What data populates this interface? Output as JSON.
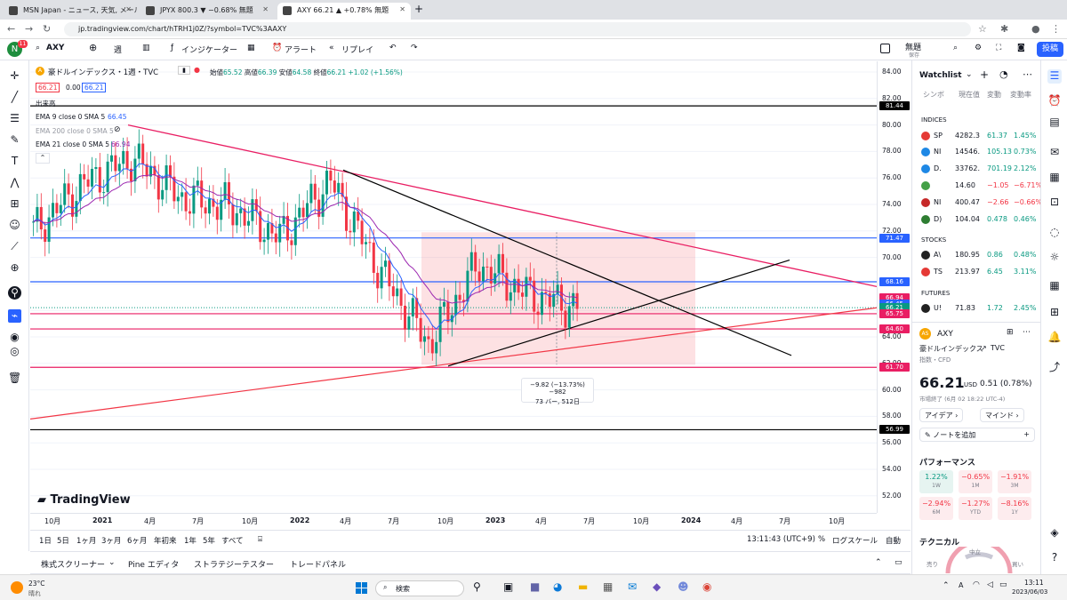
{
  "tabs": [
    {
      "label": "MSN Japan - ニュース, 天気, メール",
      "active": false
    },
    {
      "label": "JPYX 800.3 ▼ −0.68% 無題",
      "active": false
    },
    {
      "label": "AXY 66.21 ▲ +0.78% 無題",
      "active": true
    }
  ],
  "url": "jp.tradingview.com/chart/hTRH1j0Z/?symbol=TVC%3AAXY",
  "toolbar": {
    "avatar": "N",
    "badge": "11",
    "symbol": "AXY",
    "interval": "週",
    "indicators": "インジケーター",
    "alert": "アラート",
    "replay": "リプレイ",
    "layout_name": "無題",
    "layout_sub": "保存",
    "publish": "投稿"
  },
  "legend": {
    "title": "豪ドルインデックス・1週・TVC",
    "ohlc_o_label": "始値",
    "ohlc_o": "65.52",
    "ohlc_h_label": "高値",
    "ohlc_h": "66.39",
    "ohlc_l_label": "安値",
    "ohlc_l": "64.58",
    "ohlc_c_label": "終値",
    "ohlc_c": "66.21",
    "change": "+1.02 (+1.56%)",
    "box1": "66.21",
    "box2": "0.00",
    "box3": "66.21",
    "volume_label": "出来高",
    "ema9": "EMA 9 close 0 SMA 5",
    "ema9_val": "66.45",
    "ema200": "EMA 200 close 0 SMA 5",
    "ema21": "EMA 21 close 0 SMA 5",
    "ema21_val": "66.94"
  },
  "measure": {
    "line1": "−9.82 (−13.73%) −982",
    "line2": "73 バー, 512日"
  },
  "watermark": "TradingView",
  "price_labels": [
    "84.00",
    "82.00",
    "80.00",
    "78.00",
    "76.00",
    "74.00",
    "72.00",
    "70.00",
    "68.00",
    "66.00",
    "64.00",
    "62.00",
    "60.00",
    "58.00",
    "56.00",
    "54.00",
    "52.00"
  ],
  "price_boxes": [
    {
      "v": "81.44",
      "c": "#000000"
    },
    {
      "v": "71.47",
      "c": "#2962ff"
    },
    {
      "v": "68.16",
      "c": "#2962ff"
    },
    {
      "v": "66.94",
      "c": "#e91e63"
    },
    {
      "v": "66.45",
      "c": "#2962ff"
    },
    {
      "v": "66.21",
      "c": "#089981"
    },
    {
      "v": "65.75",
      "c": "#e91e63"
    },
    {
      "v": "64.60",
      "c": "#e91e63"
    },
    {
      "v": "61.70",
      "c": "#e91e63"
    },
    {
      "v": "56.99",
      "c": "#000000"
    }
  ],
  "time_labels": [
    "10月",
    "2021",
    "4月",
    "7月",
    "10月",
    "2022",
    "4月",
    "7月",
    "10月",
    "2023",
    "4月",
    "7月",
    "10月",
    "2024",
    "4月",
    "7月",
    "10月"
  ],
  "ranges": [
    "1日",
    "5日",
    "1ヶ月",
    "3ヶ月",
    "6ヶ月",
    "年初来",
    "1年",
    "5年",
    "すべて"
  ],
  "clock": "13:11:43 (UTC+9)",
  "pct": "%",
  "log": "ログスケール",
  "auto": "自動",
  "bottom_tabs": [
    "株式スクリーナー",
    "Pine エディタ",
    "ストラテジーテスター",
    "トレードパネル"
  ],
  "watchlist": {
    "title": "Watchlist",
    "cols": [
      "シンボ",
      "現在值",
      "変動",
      "変動率"
    ],
    "sections": {
      "indices": "INDICES",
      "stocks": "STOCKS",
      "futures": "FUTURES"
    },
    "rows": [
      {
        "sym": "SP",
        "price": "4282.3",
        "chg": "61.37",
        "pct": "1.45%",
        "color": "#e53935",
        "up": true
      },
      {
        "sym": "NI",
        "price": "14546.",
        "chg": "105.13",
        "pct": "0.73%",
        "color": "#1e88e5",
        "up": true
      },
      {
        "sym": "D.",
        "price": "33762.",
        "chg": "701.19",
        "pct": "2.12%",
        "color": "#1e88e5",
        "up": true
      },
      {
        "sym": "",
        "price": "14.60",
        "chg": "−1.05",
        "pct": "−6.71%",
        "color": "#43a047",
        "up": false
      },
      {
        "sym": "NI",
        "price": "400.47",
        "chg": "−2.66",
        "pct": "−0.66%",
        "color": "#c62828",
        "up": false
      },
      {
        "sym": "D)",
        "price": "104.04",
        "chg": "0.478",
        "pct": "0.46%",
        "color": "#2e7d32",
        "up": true
      },
      {
        "sym": "A\\",
        "price": "180.95",
        "chg": "0.86",
        "pct": "0.48%",
        "color": "#212121",
        "up": true
      },
      {
        "sym": "TS",
        "price": "213.97",
        "chg": "6.45",
        "pct": "3.11%",
        "color": "#e53935",
        "up": true
      },
      {
        "sym": "U!",
        "price": "71.83",
        "chg": "1.72",
        "pct": "2.45%",
        "color": "#212121",
        "up": true
      }
    ],
    "detail": {
      "sym": "AXY",
      "name": "豪ドルインデックス",
      "exch": "TVC",
      "type": "指数・CFD",
      "price": "66.21",
      "cur": "USD",
      "chg": "0.51 (0.78%)",
      "status": "市場終了 (6月 02 18:22 UTC-4)",
      "btn1": "アイデア",
      "btn2": "マインド",
      "note": "ノートを追加",
      "perf_title": "パフォーマンス",
      "tech": "テクニカル",
      "gauge_mid": "中立",
      "gauge_l": "売り",
      "gauge_r": "買い"
    },
    "perf": [
      {
        "v": "1.22%",
        "p": "1W",
        "g": true
      },
      {
        "v": "−0.65%",
        "p": "1M",
        "g": false
      },
      {
        "v": "−1.91%",
        "p": "3M",
        "g": false
      },
      {
        "v": "−2.94%",
        "p": "6M",
        "g": false
      },
      {
        "v": "−1.27%",
        "p": "YTD",
        "g": false
      },
      {
        "v": "−8.16%",
        "p": "1Y",
        "g": false
      }
    ]
  },
  "taskbar": {
    "temp": "23°C",
    "weather": "晴れ",
    "search": "検索",
    "time": "13:11",
    "date": "2023/06/03",
    "ime": "A"
  },
  "chart_data": {
    "type": "candlestick",
    "symbol": "AXY",
    "interval": "1W",
    "ylim": [
      51,
      85
    ],
    "x": [
      "2020-10",
      "2021-01",
      "2021-04",
      "2021-07",
      "2021-10",
      "2022-01",
      "2022-04",
      "2022-07",
      "2022-10",
      "2023-01",
      "2023-04",
      "2023-06"
    ],
    "close": [
      72.0,
      75.5,
      77.5,
      74.5,
      73.8,
      71.5,
      75.8,
      69.0,
      63.5,
      69.5,
      67.2,
      66.21
    ],
    "hlines": [
      81.44,
      71.47,
      68.16,
      66.94,
      66.45,
      66.21,
      65.75,
      64.6,
      61.7,
      56.99
    ]
  }
}
